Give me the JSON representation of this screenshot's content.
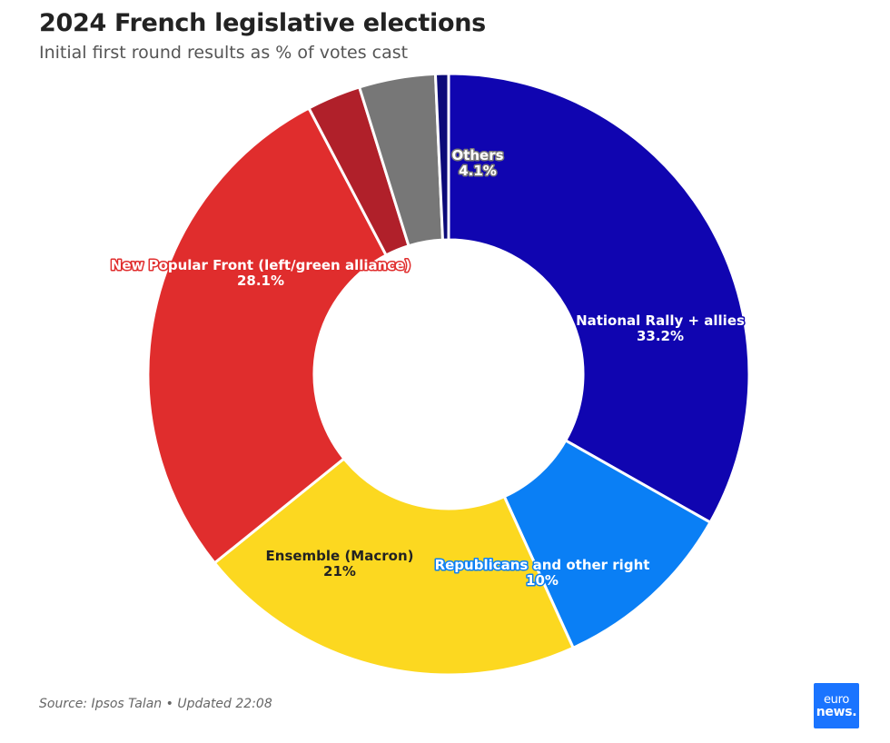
{
  "header": {
    "title": "2024 French legislative elections",
    "subtitle": "Initial first round results as % of votes cast"
  },
  "footer": {
    "source": "Source: Ipsos Talan • Updated 22:08"
  },
  "logo": {
    "line1": "euro",
    "line2": "news."
  },
  "chart_data": {
    "type": "pie",
    "variant": "donut",
    "title": "2024 French legislative elections",
    "subtitle": "Initial first round results as % of votes cast",
    "unit": "%",
    "start_angle_deg": 0,
    "series": [
      {
        "name": "National Rally + allies",
        "value": 33.2,
        "color": "#1005b0",
        "display": "33.2%",
        "labeled": true,
        "label_style": "light"
      },
      {
        "name": "Republicans and other right",
        "value": 10.0,
        "color": "#0a7ff5",
        "display": "10%",
        "labeled": true,
        "label_style": "light"
      },
      {
        "name": "Ensemble (Macron)",
        "value": 21.0,
        "color": "#fcd820",
        "display": "21%",
        "labeled": true,
        "label_style": "dark"
      },
      {
        "name": "New Popular Front (left/green alliance)",
        "value": 28.1,
        "color": "#e02d2d",
        "display": "28.1%",
        "labeled": true,
        "label_style": "light"
      },
      {
        "name": "",
        "value": 2.9,
        "color": "#b0202a",
        "display": "",
        "labeled": false
      },
      {
        "name": "Others",
        "value": 4.1,
        "color": "#777777",
        "display": "4.1%",
        "labeled": true,
        "label_style": "light"
      },
      {
        "name": "",
        "value": 0.7,
        "color": "#0c0a78",
        "display": "",
        "labeled": false
      }
    ]
  }
}
